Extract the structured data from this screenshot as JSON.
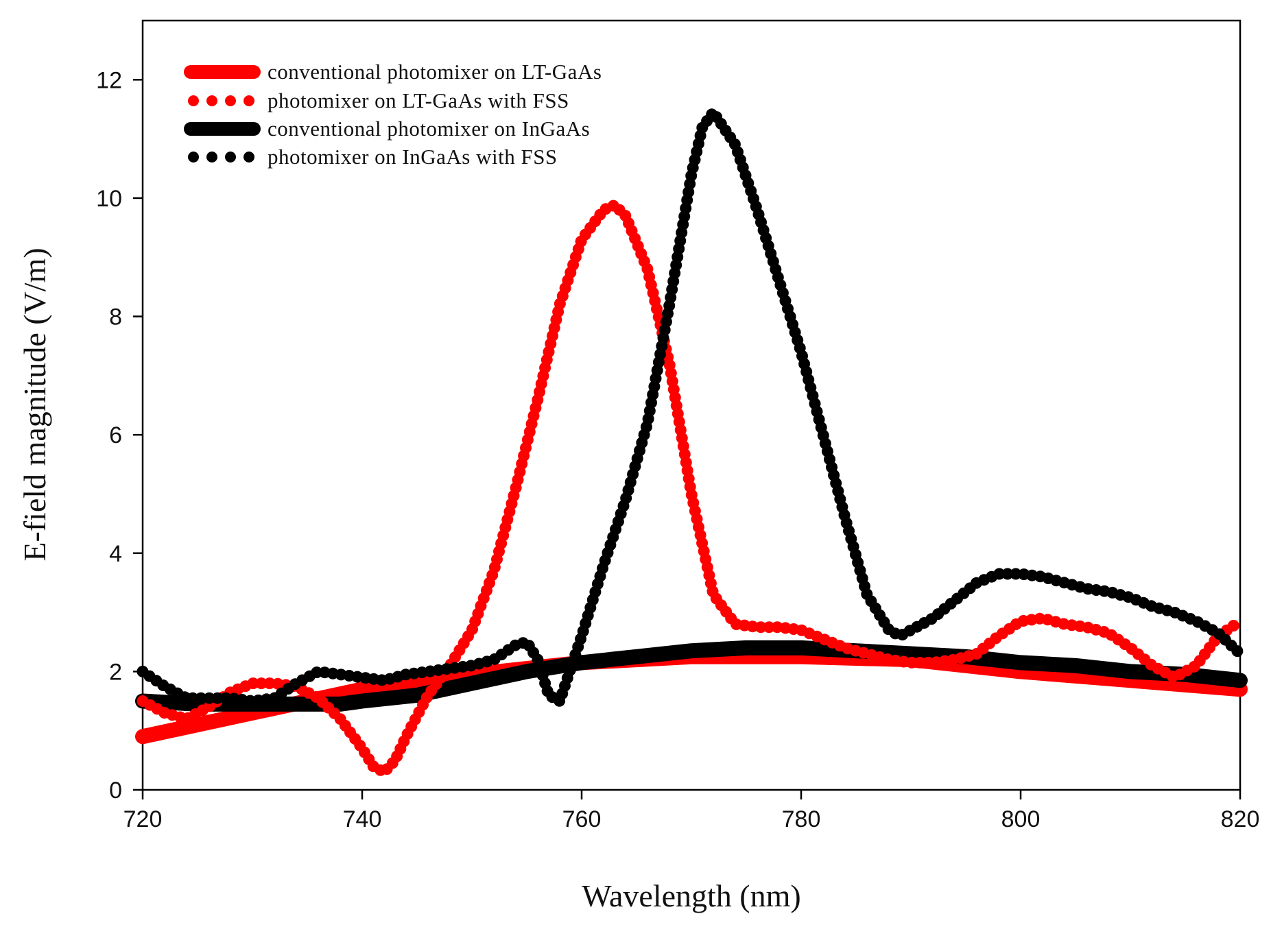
{
  "chart_data": {
    "type": "line",
    "xlabel": "Wavelength (nm)",
    "ylabel": "E-field magnitude (V/m)",
    "xlim": [
      720,
      820
    ],
    "ylim": [
      0,
      13
    ],
    "xticks": [
      720,
      740,
      760,
      780,
      800,
      820
    ],
    "yticks": [
      0,
      2,
      4,
      6,
      8,
      10,
      12
    ],
    "legend_position": "top-left",
    "series": [
      {
        "name": "conventional photomixer on LT-GaAs",
        "color": "#ff0000",
        "style": "solid",
        "x": [
          720,
          730,
          740,
          750,
          760,
          770,
          780,
          790,
          800,
          810,
          820
        ],
        "y": [
          0.9,
          1.3,
          1.7,
          1.95,
          2.15,
          2.25,
          2.25,
          2.2,
          2.0,
          1.85,
          1.7
        ]
      },
      {
        "name": "photomixer on LT-GaAs with FSS",
        "color": "#ff0000",
        "style": "dotted",
        "x": [
          720,
          722,
          724,
          726,
          728,
          730,
          732,
          734,
          736,
          738,
          740,
          741,
          742,
          743,
          744,
          746,
          748,
          750,
          752,
          754,
          756,
          758,
          760,
          762,
          763,
          764,
          766,
          768,
          770,
          772,
          774,
          776,
          778,
          780,
          782,
          784,
          786,
          788,
          790,
          792,
          794,
          796,
          798,
          800,
          802,
          804,
          806,
          808,
          810,
          812,
          814,
          816,
          818,
          820
        ],
        "y": [
          1.5,
          1.3,
          1.2,
          1.4,
          1.65,
          1.8,
          1.8,
          1.75,
          1.55,
          1.2,
          0.7,
          0.4,
          0.3,
          0.5,
          0.9,
          1.6,
          2.1,
          2.7,
          3.7,
          5.1,
          6.6,
          8.2,
          9.3,
          9.8,
          9.88,
          9.7,
          8.8,
          7.2,
          5.0,
          3.3,
          2.8,
          2.75,
          2.75,
          2.7,
          2.55,
          2.4,
          2.3,
          2.2,
          2.15,
          2.15,
          2.2,
          2.3,
          2.6,
          2.85,
          2.9,
          2.8,
          2.75,
          2.65,
          2.4,
          2.1,
          1.9,
          2.1,
          2.6,
          2.85
        ]
      },
      {
        "name": "conventional photomixer on InGaAs",
        "color": "#000000",
        "style": "solid",
        "x": [
          720,
          725,
          730,
          735,
          738,
          740,
          745,
          750,
          755,
          760,
          765,
          770,
          775,
          780,
          785,
          790,
          795,
          800,
          805,
          810,
          815,
          820
        ],
        "y": [
          1.5,
          1.45,
          1.45,
          1.45,
          1.45,
          1.5,
          1.6,
          1.8,
          2.0,
          2.15,
          2.25,
          2.35,
          2.4,
          2.4,
          2.35,
          2.3,
          2.25,
          2.15,
          2.1,
          2.0,
          1.95,
          1.85
        ]
      },
      {
        "name": "photomixer on InGaAs with FSS",
        "color": "#000000",
        "style": "dotted",
        "x": [
          720,
          722,
          724,
          726,
          728,
          730,
          732,
          734,
          736,
          738,
          740,
          742,
          744,
          746,
          748,
          750,
          752,
          754,
          755,
          756,
          757,
          758,
          760,
          762,
          764,
          766,
          768,
          770,
          771,
          772,
          774,
          776,
          778,
          780,
          782,
          784,
          786,
          788,
          789,
          790,
          792,
          794,
          796,
          798,
          800,
          802,
          804,
          806,
          808,
          810,
          812,
          814,
          816,
          818,
          820
        ],
        "y": [
          2.0,
          1.75,
          1.55,
          1.55,
          1.55,
          1.5,
          1.55,
          1.8,
          2.0,
          1.95,
          1.9,
          1.85,
          1.95,
          2.0,
          2.05,
          2.1,
          2.2,
          2.45,
          2.5,
          2.2,
          1.6,
          1.5,
          2.6,
          3.8,
          4.9,
          6.2,
          8.2,
          10.4,
          11.2,
          11.45,
          10.9,
          9.8,
          8.6,
          7.4,
          6.0,
          4.6,
          3.3,
          2.7,
          2.6,
          2.7,
          2.9,
          3.2,
          3.5,
          3.65,
          3.65,
          3.6,
          3.5,
          3.4,
          3.35,
          3.25,
          3.1,
          3.0,
          2.85,
          2.65,
          2.3
        ]
      }
    ]
  }
}
